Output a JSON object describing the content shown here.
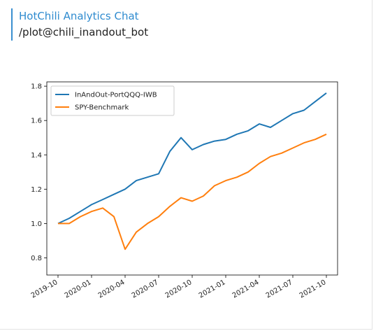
{
  "header": {
    "title": "HotChili Analytics Chat",
    "subtitle": "/plot@chili_inandout_bot"
  },
  "chart_data": {
    "type": "line",
    "x": [
      "2019-10",
      "2019-11",
      "2019-12",
      "2020-01",
      "2020-02",
      "2020-03",
      "2020-04",
      "2020-05",
      "2020-06",
      "2020-07",
      "2020-08",
      "2020-09",
      "2020-10",
      "2020-11",
      "2020-12",
      "2021-01",
      "2021-02",
      "2021-03",
      "2021-04",
      "2021-05",
      "2021-06",
      "2021-07",
      "2021-08",
      "2021-09",
      "2021-10"
    ],
    "series": [
      {
        "name": "InAndOut-PortQQQ-IWB",
        "color": "#1f77b4",
        "values": [
          1.0,
          1.03,
          1.07,
          1.11,
          1.14,
          1.17,
          1.2,
          1.25,
          1.27,
          1.29,
          1.42,
          1.5,
          1.43,
          1.46,
          1.48,
          1.49,
          1.52,
          1.54,
          1.58,
          1.56,
          1.6,
          1.64,
          1.66,
          1.71,
          1.76
        ]
      },
      {
        "name": "SPY-Benchmark",
        "color": "#ff7f0e",
        "values": [
          1.0,
          1.0,
          1.04,
          1.07,
          1.09,
          1.04,
          0.85,
          0.95,
          1.0,
          1.04,
          1.1,
          1.15,
          1.13,
          1.16,
          1.22,
          1.25,
          1.27,
          1.3,
          1.35,
          1.39,
          1.41,
          1.44,
          1.47,
          1.49,
          1.52
        ]
      }
    ],
    "xlim": [
      "2019-09",
      "2021-11"
    ],
    "xticks": [
      "2019-10",
      "2020-01",
      "2020-04",
      "2020-07",
      "2020-10",
      "2021-01",
      "2021-04",
      "2021-07",
      "2021-10"
    ],
    "ylim": [
      0.7,
      1.825
    ],
    "yticks": [
      0.8,
      {
        "value": 1,
        "label": "1.0"
      },
      1.2,
      1.4,
      1.6,
      1.8
    ],
    "legend": "upper-left"
  }
}
